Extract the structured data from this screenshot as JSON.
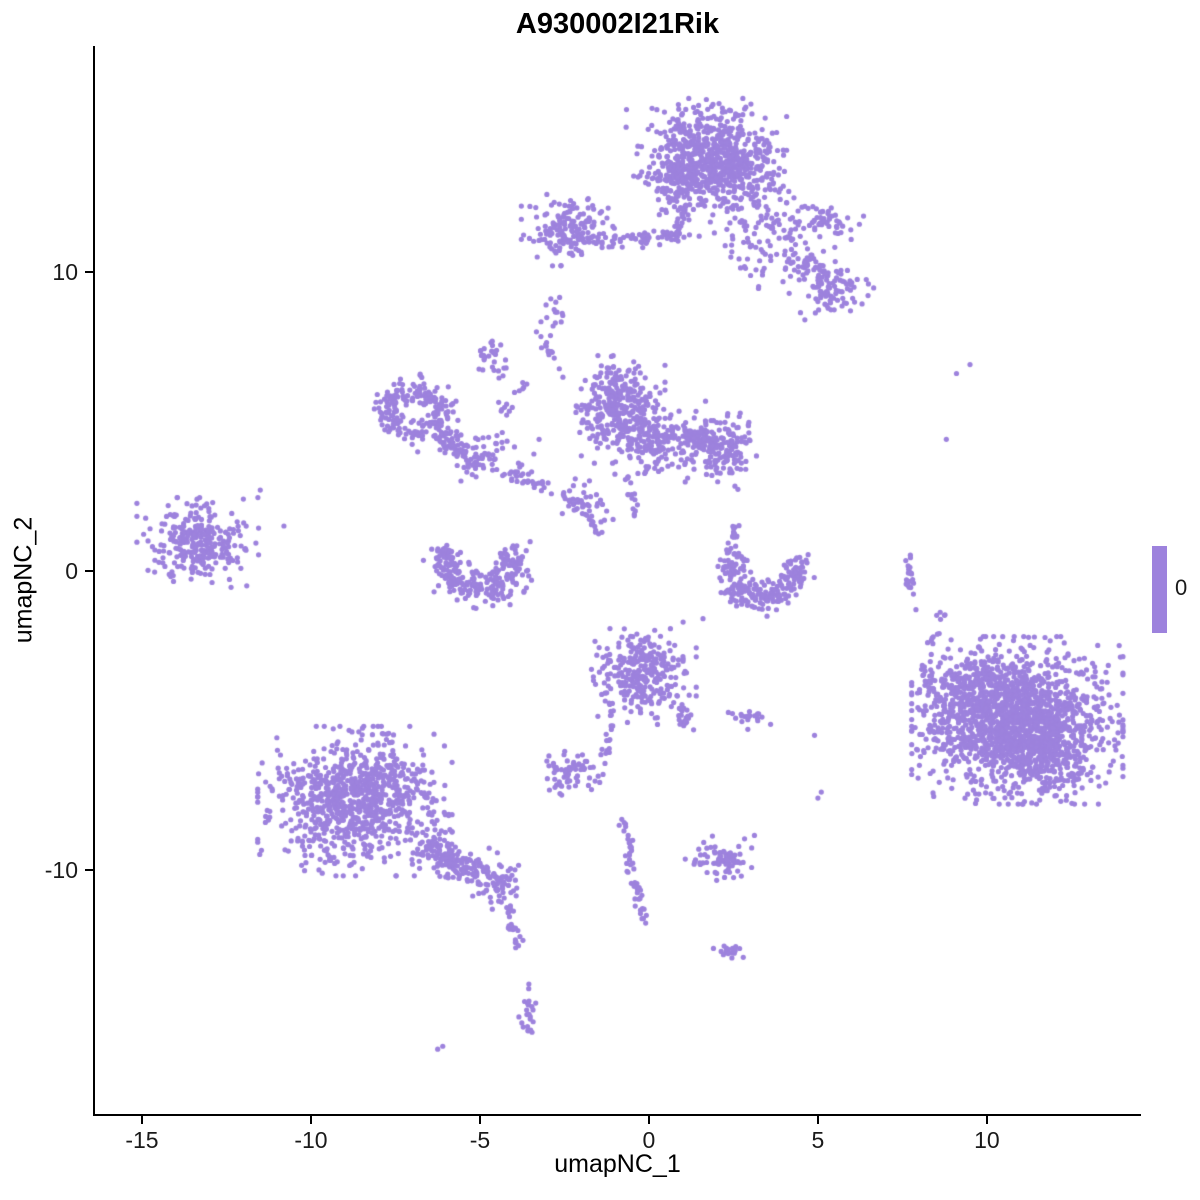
{
  "title": "A930002I21Rik",
  "axes": {
    "x_label": "umapNC_1",
    "y_label": "umapNC_2",
    "x_ticks": [
      "-15",
      "-10",
      "-5",
      "0",
      "5",
      "10"
    ],
    "x_tick_values": [
      -15,
      -10,
      -5,
      0,
      5,
      10
    ],
    "y_ticks": [
      "10",
      "0",
      "-10"
    ],
    "y_tick_values": [
      10,
      0,
      -10
    ]
  },
  "legend": {
    "label": "0"
  },
  "colors": {
    "point": "#9d82dd",
    "axis": "#000000",
    "background": "#ffffff",
    "tick_text": "#1a1a1a"
  },
  "chart_data": {
    "type": "scatter",
    "title": "A930002I21Rik",
    "xlabel": "umapNC_1",
    "ylabel": "umapNC_2",
    "xlim": [
      -16.39,
      14.53
    ],
    "ylim": [
      -18.2,
      17.52
    ],
    "grid": false,
    "legend_position": "right",
    "legend_value": "0",
    "point_color": "#9d82dd",
    "point_radius_px": 2.6,
    "clusters": [
      {
        "type": "gauss",
        "cx": 1.7,
        "cy": 14.0,
        "sx": 0.95,
        "sy": 0.72,
        "n": 560
      },
      {
        "type": "gauss",
        "cx": 0.9,
        "cy": 12.9,
        "sx": 0.45,
        "sy": 0.45,
        "n": 110
      },
      {
        "type": "gauss",
        "cx": 2.6,
        "cy": 13.3,
        "sx": 0.55,
        "sy": 0.5,
        "n": 120
      },
      {
        "type": "gauss",
        "cx": 3.1,
        "cy": 11.9,
        "sx": 0.8,
        "sy": 0.75,
        "n": 110
      },
      {
        "type": "gauss",
        "cx": 4.1,
        "cy": 10.7,
        "sx": 0.6,
        "sy": 0.7,
        "n": 60
      },
      {
        "type": "gauss",
        "cx": 5.3,
        "cy": 11.65,
        "sx": 0.42,
        "sy": 0.28,
        "n": 45
      },
      {
        "type": "gauss",
        "cx": 5.4,
        "cy": 9.4,
        "sx": 0.5,
        "sy": 0.42,
        "n": 90
      },
      {
        "type": "line",
        "x0": 4.6,
        "y0": 10.6,
        "x1": 5.2,
        "y1": 9.9,
        "jitter": 0.25,
        "n": 25
      },
      {
        "type": "gauss",
        "cx": -2.4,
        "cy": 11.4,
        "sx": 0.55,
        "sy": 0.48,
        "n": 170
      },
      {
        "type": "line",
        "x0": -1.6,
        "y0": 11.0,
        "x1": 0.7,
        "y1": 11.2,
        "jitter": 0.18,
        "n": 55
      },
      {
        "type": "line",
        "x0": 0.85,
        "y0": 11.1,
        "x1": 1.1,
        "y1": 12.4,
        "jitter": 0.15,
        "n": 30
      },
      {
        "type": "gauss",
        "cx": -2.85,
        "cy": 8.6,
        "sx": 0.15,
        "sy": 0.25,
        "n": 14
      },
      {
        "type": "arc",
        "cx": -6.95,
        "cy": 5.3,
        "r": 0.8,
        "a0": -40,
        "a1": 320,
        "jitter": 0.42,
        "n": 210
      },
      {
        "type": "line",
        "x0": -6.2,
        "y0": 4.5,
        "x1": -5.1,
        "y1": 3.7,
        "jitter": 0.28,
        "n": 70
      },
      {
        "type": "gauss",
        "cx": -4.5,
        "cy": 3.9,
        "sx": 0.5,
        "sy": 0.5,
        "n": 50
      },
      {
        "type": "line",
        "x0": -4.2,
        "y0": 3.3,
        "x1": -2.9,
        "y1": 2.8,
        "jitter": 0.2,
        "n": 22
      },
      {
        "type": "gauss",
        "cx": -4.7,
        "cy": 7.2,
        "sx": 0.22,
        "sy": 0.3,
        "n": 30
      },
      {
        "type": "line",
        "x0": -3.3,
        "y0": 8.1,
        "x1": -2.6,
        "y1": 6.6,
        "jitter": 0.15,
        "n": 16
      },
      {
        "type": "line",
        "x0": -3.7,
        "y0": 6.2,
        "x1": -4.4,
        "y1": 5.2,
        "jitter": 0.15,
        "n": 14
      },
      {
        "type": "gauss",
        "cx": -0.9,
        "cy": 5.4,
        "sx": 0.55,
        "sy": 0.72,
        "n": 330
      },
      {
        "type": "gauss",
        "cx": 0.3,
        "cy": 4.3,
        "sx": 0.55,
        "sy": 0.55,
        "n": 160
      },
      {
        "type": "gauss",
        "cx": 2.15,
        "cy": 4.1,
        "sx": 0.45,
        "sy": 0.55,
        "n": 170
      },
      {
        "type": "line",
        "x0": 1.0,
        "y0": 4.6,
        "x1": 1.7,
        "y1": 4.3,
        "jitter": 0.2,
        "n": 35
      },
      {
        "type": "gauss",
        "cx": -2.0,
        "cy": 2.3,
        "sx": 0.4,
        "sy": 0.35,
        "n": 40
      },
      {
        "type": "line",
        "x0": -1.4,
        "y0": 1.1,
        "x1": -2.1,
        "y1": 2.4,
        "jitter": 0.12,
        "n": 22
      },
      {
        "type": "line",
        "x0": -0.6,
        "y0": 3.2,
        "x1": -0.4,
        "y1": 1.8,
        "jitter": 0.1,
        "n": 16
      },
      {
        "type": "gauss",
        "cx": -13.35,
        "cy": 0.95,
        "sx": 0.72,
        "sy": 0.6,
        "n": 290
      },
      {
        "type": "dots",
        "pts": [
          [
            -11.5,
            2.7
          ],
          [
            -10.8,
            1.5
          ],
          [
            -12.0,
            2.4
          ],
          [
            -11.9,
            -0.5
          ]
        ]
      },
      {
        "type": "arc",
        "cx": -5.0,
        "cy": 0.3,
        "r": 1.0,
        "a0": 150,
        "a1": 390,
        "jitter": 0.55,
        "n": 270
      },
      {
        "type": "arc",
        "cx": 3.4,
        "cy": 0.0,
        "r": 0.95,
        "a0": 140,
        "a1": 385,
        "jitter": 0.5,
        "n": 230
      },
      {
        "type": "line",
        "x0": 2.5,
        "y0": 0.9,
        "x1": 2.6,
        "y1": 1.5,
        "jitter": 0.12,
        "n": 14
      },
      {
        "type": "line",
        "x0": 7.7,
        "y0": 0.5,
        "x1": 7.75,
        "y1": -0.7,
        "jitter": 0.09,
        "n": 24
      },
      {
        "type": "gauss",
        "cx": -0.15,
        "cy": -3.4,
        "sx": 0.62,
        "sy": 0.7,
        "n": 300
      },
      {
        "type": "line",
        "x0": 0.8,
        "y0": -4.4,
        "x1": 1.2,
        "y1": -5.2,
        "jitter": 0.15,
        "n": 22
      },
      {
        "type": "line",
        "x0": -1.1,
        "y0": -4.5,
        "x1": -1.3,
        "y1": -6.2,
        "jitter": 0.12,
        "n": 20
      },
      {
        "type": "gauss",
        "cx": 2.9,
        "cy": -4.85,
        "sx": 0.28,
        "sy": 0.18,
        "n": 20
      },
      {
        "type": "gauss",
        "cx": -2.35,
        "cy": -6.75,
        "sx": 0.42,
        "sy": 0.3,
        "n": 70
      },
      {
        "type": "gauss",
        "cx": 10.9,
        "cy": -5.0,
        "sx": 1.25,
        "sy": 1.12,
        "n": 1650
      },
      {
        "type": "gauss",
        "cx": 9.5,
        "cy": -3.9,
        "sx": 0.55,
        "sy": 0.55,
        "n": 140
      },
      {
        "type": "gauss",
        "cx": 11.9,
        "cy": -6.3,
        "sx": 0.55,
        "sy": 0.5,
        "n": 130
      },
      {
        "type": "line",
        "x0": 8.2,
        "y0": -3.0,
        "x1": 8.7,
        "y1": -5.6,
        "jitter": 0.3,
        "n": 35
      },
      {
        "type": "line",
        "x0": 8.3,
        "y0": -2.6,
        "x1": 8.7,
        "y1": -1.4,
        "jitter": 0.12,
        "n": 12
      },
      {
        "type": "dots",
        "pts": [
          [
            9.5,
            6.9
          ],
          [
            9.1,
            6.6
          ],
          [
            8.8,
            4.4
          ],
          [
            7.9,
            -1.3
          ],
          [
            10.2,
            -2.2
          ],
          [
            5.1,
            -7.4
          ],
          [
            5.0,
            -7.6
          ],
          [
            4.9,
            -5.5
          ],
          [
            1.6,
            -1.6
          ]
        ]
      },
      {
        "type": "gauss",
        "cx": -8.7,
        "cy": -7.7,
        "sx": 1.15,
        "sy": 1.0,
        "n": 900
      },
      {
        "type": "line",
        "x0": -6.7,
        "y0": -9.1,
        "x1": -5.1,
        "y1": -10.2,
        "jitter": 0.42,
        "n": 140
      },
      {
        "type": "gauss",
        "cx": -4.5,
        "cy": -10.4,
        "sx": 0.35,
        "sy": 0.4,
        "n": 80
      },
      {
        "type": "line",
        "x0": -4.2,
        "y0": -11.1,
        "x1": -3.85,
        "y1": -12.6,
        "jitter": 0.12,
        "n": 26
      },
      {
        "type": "gauss",
        "cx": -3.55,
        "cy": -14.8,
        "sx": 0.12,
        "sy": 0.5,
        "n": 24
      },
      {
        "type": "dots",
        "pts": [
          [
            -6.1,
            -15.9
          ],
          [
            -6.25,
            -16.0
          ]
        ]
      },
      {
        "type": "gauss",
        "cx": 2.2,
        "cy": -9.6,
        "sx": 0.45,
        "sy": 0.3,
        "n": 80
      },
      {
        "type": "line",
        "x0": -0.75,
        "y0": -8.3,
        "x1": -0.45,
        "y1": -10.2,
        "jitter": 0.12,
        "n": 26
      },
      {
        "type": "line",
        "x0": -0.45,
        "y0": -10.2,
        "x1": -0.1,
        "y1": -11.9,
        "jitter": 0.1,
        "n": 22
      },
      {
        "type": "gauss",
        "cx": 2.35,
        "cy": -12.7,
        "sx": 0.22,
        "sy": 0.14,
        "n": 18
      }
    ]
  }
}
